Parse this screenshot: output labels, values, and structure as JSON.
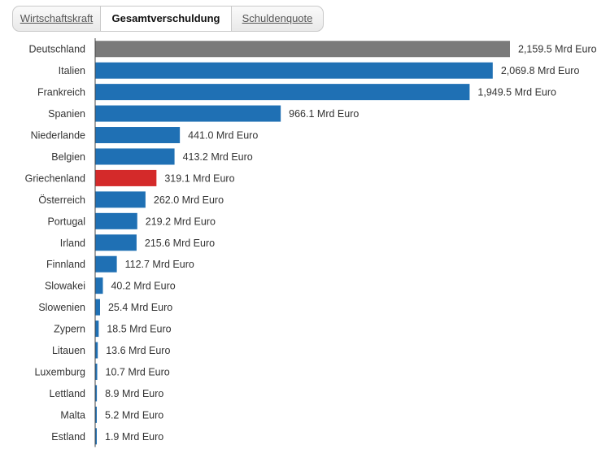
{
  "tabs": [
    {
      "label": "Wirtschaftskraft",
      "active": false
    },
    {
      "label": "Gesamtverschuldung",
      "active": true
    },
    {
      "label": "Schuldenquote",
      "active": false
    }
  ],
  "colors": {
    "default": "#1f70b4",
    "highlight_germany": "#7a7a7a",
    "highlight_greece": "#d42a2a",
    "axis": "#444444"
  },
  "chart_data": {
    "type": "bar",
    "orientation": "horizontal",
    "unit": "Mrd Euro",
    "categories": [
      "Deutschland",
      "Italien",
      "Frankreich",
      "Spanien",
      "Niederlande",
      "Belgien",
      "Griechenland",
      "Österreich",
      "Portugal",
      "Irland",
      "Finnland",
      "Slowakei",
      "Slowenien",
      "Zypern",
      "Litauen",
      "Luxemburg",
      "Lettland",
      "Malta",
      "Estland"
    ],
    "values": [
      2159.5,
      2069.8,
      1949.5,
      966.1,
      441.0,
      413.2,
      319.1,
      262.0,
      219.2,
      215.6,
      112.7,
      40.2,
      25.4,
      18.5,
      13.6,
      10.7,
      8.9,
      5.2,
      1.9
    ],
    "value_labels": [
      "2,159.5 Mrd Euro",
      "2,069.8 Mrd Euro",
      "1,949.5 Mrd Euro",
      "966.1 Mrd Euro",
      "441.0 Mrd Euro",
      "413.2 Mrd Euro",
      "319.1 Mrd Euro",
      "262.0 Mrd Euro",
      "219.2 Mrd Euro",
      "215.6 Mrd Euro",
      "112.7 Mrd Euro",
      "40.2 Mrd Euro",
      "25.4 Mrd Euro",
      "18.5 Mrd Euro",
      "13.6 Mrd Euro",
      "10.7 Mrd Euro",
      "8.9 Mrd Euro",
      "5.2 Mrd Euro",
      "1.9 Mrd Euro"
    ],
    "bar_colors": [
      "#7a7a7a",
      "#1f70b4",
      "#1f70b4",
      "#1f70b4",
      "#1f70b4",
      "#1f70b4",
      "#d42a2a",
      "#1f70b4",
      "#1f70b4",
      "#1f70b4",
      "#1f70b4",
      "#1f70b4",
      "#1f70b4",
      "#1f70b4",
      "#1f70b4",
      "#1f70b4",
      "#1f70b4",
      "#1f70b4",
      "#1f70b4"
    ],
    "xlim": [
      0,
      2159.5
    ],
    "grid": false,
    "legend": "none"
  }
}
